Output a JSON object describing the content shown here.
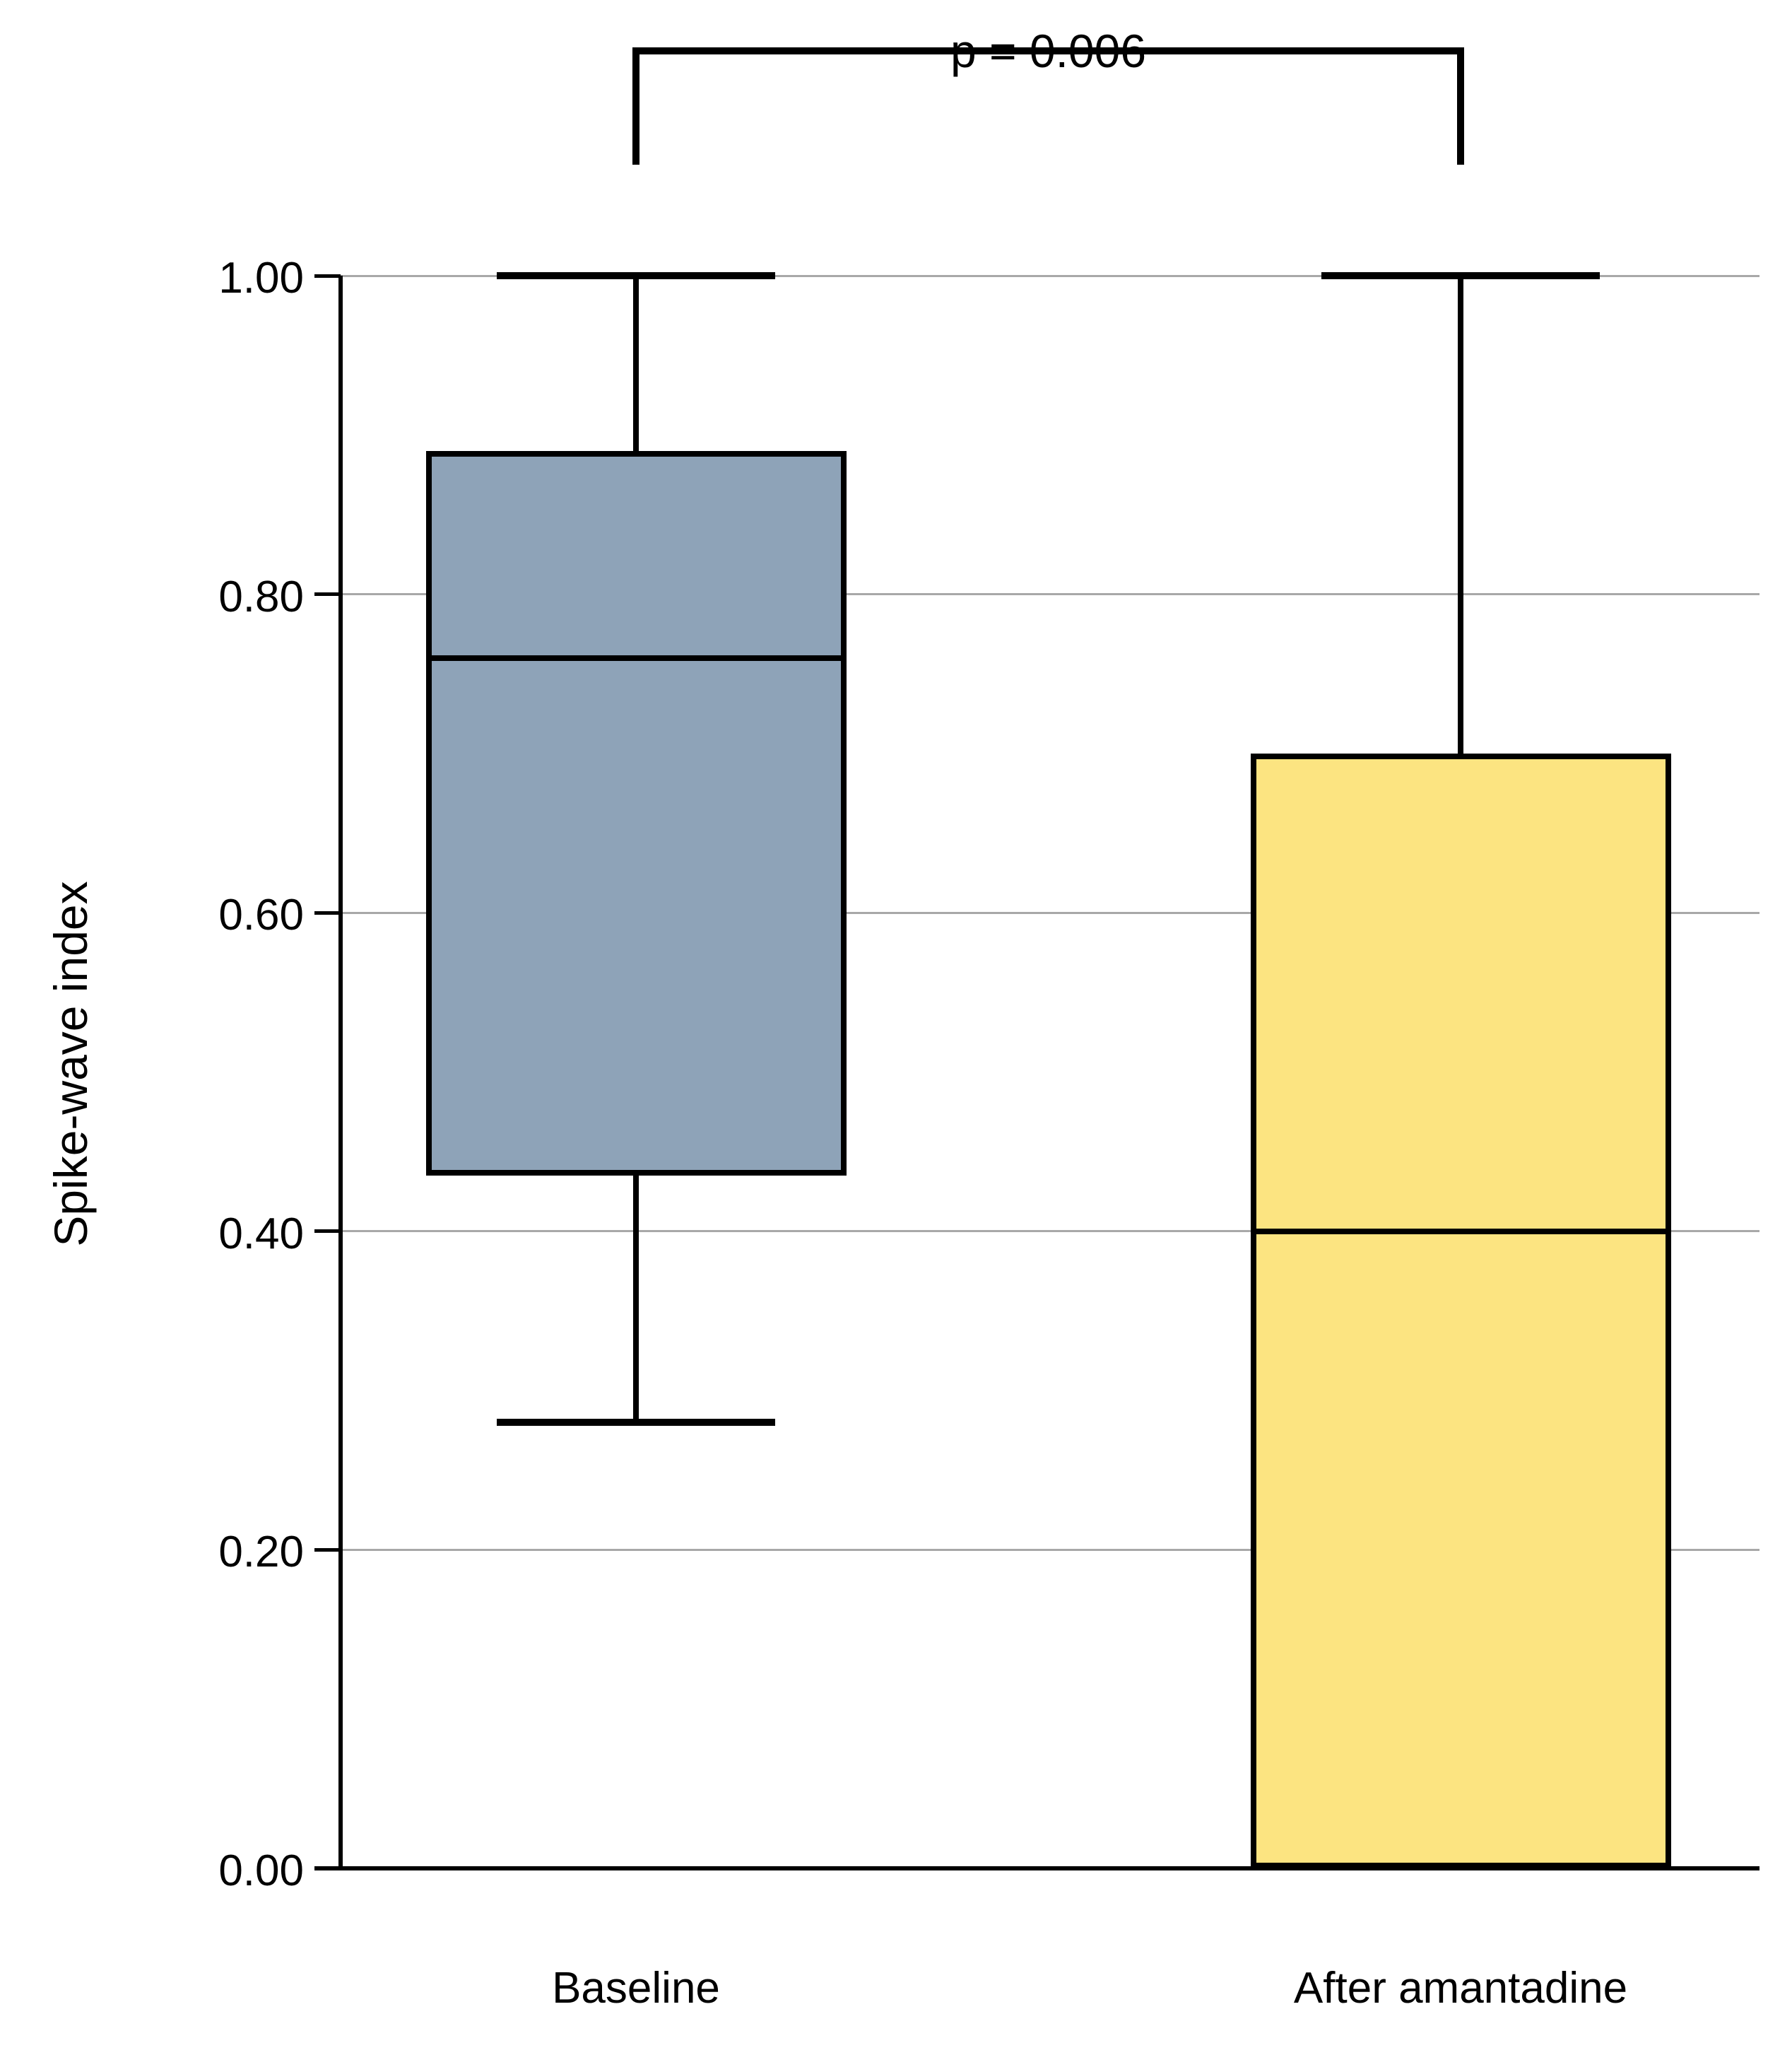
{
  "chart_data": {
    "type": "boxplot",
    "title": "",
    "ylabel": "Spike-wave index",
    "xlabel": "",
    "ylim": [
      0.0,
      1.0
    ],
    "yticks": [
      0.0,
      0.2,
      0.4,
      0.6,
      0.8,
      1.0
    ],
    "ytick_labels": [
      "0.00",
      "0.20",
      "0.40",
      "0.60",
      "0.80",
      "1.00"
    ],
    "categories": [
      "Baseline",
      "After amantadine"
    ],
    "series": [
      {
        "name": "Baseline",
        "min": 0.28,
        "q1": 0.435,
        "median": 0.76,
        "q3": 0.89,
        "max": 1.0,
        "fill_color": "#8EA3B8"
      },
      {
        "name": "After amantadine",
        "min": 0.0,
        "q1": 0.0,
        "median": 0.4,
        "q3": 0.7,
        "max": 1.0,
        "fill_color": "#FCE481"
      }
    ],
    "annotation": {
      "text": "p = 0.006",
      "compares": [
        "Baseline",
        "After amantadine"
      ]
    },
    "grid": true,
    "legend": false,
    "colors": {
      "gridline": "#A8A8A8",
      "axis": "#000000",
      "box_border": "#000000",
      "text": "#000000"
    }
  }
}
